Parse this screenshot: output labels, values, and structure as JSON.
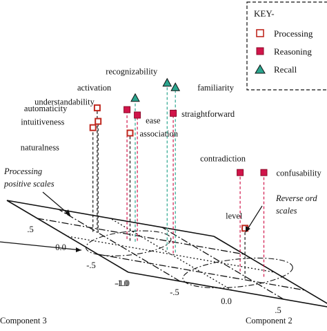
{
  "chart_data": {
    "type": "scatter",
    "title": "",
    "projection": "3d",
    "axes": {
      "x": {
        "label": "Component 2",
        "range": [
          -1.0,
          1.0
        ],
        "ticks": [
          -1.0,
          -0.5,
          0.0,
          0.5
        ]
      },
      "z": {
        "label": "Component 3",
        "range": [
          -1.0,
          1.0
        ],
        "ticks": [
          0.5,
          0.0,
          -0.5,
          -1.0
        ]
      }
    },
    "legend": {
      "title": "KEY-",
      "placement": "top-right",
      "entries": [
        {
          "series": "processing",
          "label": "Processing",
          "marker": "square-open",
          "color": "#c0281f"
        },
        {
          "series": "reasoning",
          "label": "Reasoning",
          "marker": "square-filled",
          "color": "#d1144a"
        },
        {
          "series": "recall",
          "label": "Recall",
          "marker": "triangle",
          "color": "#2aa58e"
        }
      ]
    },
    "points": [
      {
        "label": "recognizability",
        "series": "recall",
        "c2": 0.05,
        "c3": 0.15,
        "height": 0.93
      },
      {
        "label": "familiarity",
        "series": "recall",
        "c2": 0.1,
        "c3": 0.1,
        "height": 0.92
      },
      {
        "label": "activation",
        "series": "recall",
        "c2": -0.2,
        "c3": 0.25,
        "height": 0.8
      },
      {
        "label": "straightforward",
        "series": "reasoning",
        "c2": 0.05,
        "c3": 0.05,
        "height": 0.78
      },
      {
        "label": "understandability",
        "series": "reasoning",
        "c2": -0.25,
        "c3": 0.3,
        "height": 0.72
      },
      {
        "label": "ease",
        "series": "reasoning",
        "c2": -0.15,
        "c3": 0.3,
        "height": 0.7
      },
      {
        "label": "automaticity",
        "series": "processing",
        "c2": -0.45,
        "c3": 0.45,
        "height": 0.68
      },
      {
        "label": "association",
        "series": "processing",
        "c2": -0.25,
        "c3": 0.25,
        "height": 0.6
      },
      {
        "label": "intuitiveness",
        "series": "processing",
        "c2": -0.5,
        "c3": 0.35,
        "height": 0.62
      },
      {
        "label": "naturalness",
        "series": "processing",
        "c2": -0.55,
        "c3": 0.35,
        "height": 0.58
      },
      {
        "label": "contradiction",
        "series": "reasoning",
        "c2": 0.55,
        "c3": -0.2,
        "height": 0.55
      },
      {
        "label": "confusability",
        "series": "reasoning",
        "c2": 0.75,
        "c3": -0.25,
        "height": 0.58
      },
      {
        "label": "level",
        "series": "processing",
        "c2": 0.45,
        "c3": -0.45,
        "height": 0.28
      }
    ],
    "annotations": [
      {
        "id": "processing-positive",
        "text_lines": [
          "Processing",
          "positive scales"
        ]
      },
      {
        "id": "reverse-order",
        "text_lines": [
          "Reverse ord",
          "scales"
        ]
      }
    ]
  }
}
